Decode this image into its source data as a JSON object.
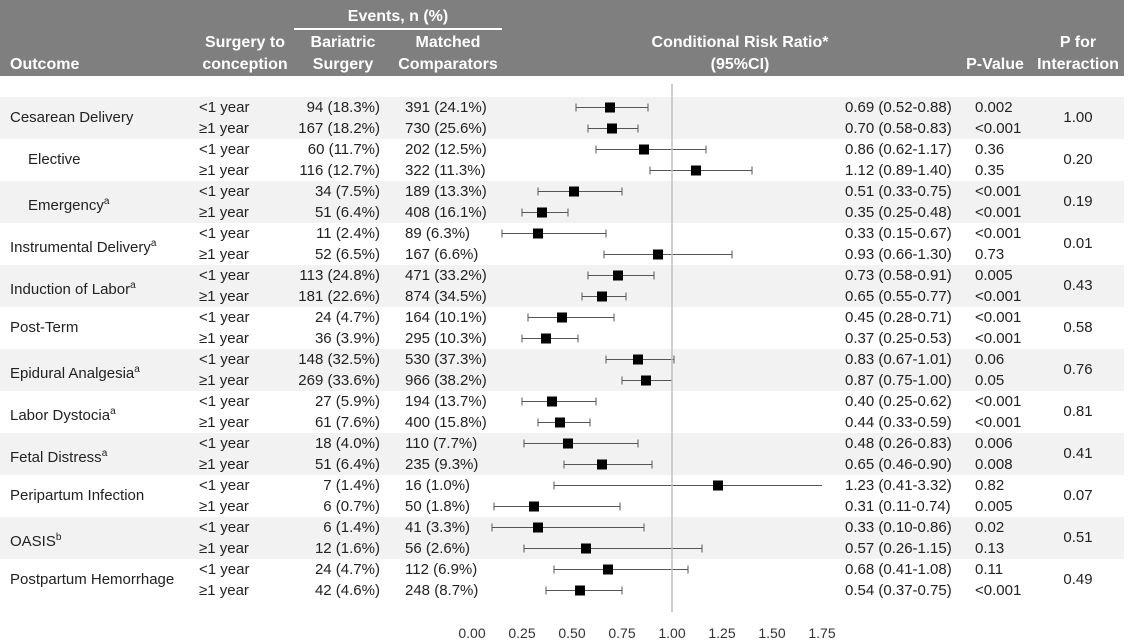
{
  "header": {
    "events_label": "Events, n (%)",
    "outcome_label": "Outcome",
    "surgery_line1": "Surgery to",
    "surgery_line2": "conception",
    "bariatric_line1": "Bariatric",
    "bariatric_line2": "Surgery",
    "matched_line1": "Matched",
    "matched_line2": "Comparators",
    "crr_line1": "Conditional Risk Ratio*",
    "crr_line2": "(95%CI)",
    "pvalue_label": "P-Value",
    "pint_line1": "P for",
    "pint_line2": "Interaction"
  },
  "chart_data": {
    "type": "forest",
    "x_range": [
      0,
      1.75
    ],
    "x_ticks": [
      "0.00",
      "0.25",
      "0.50",
      "0.75",
      "1.00",
      "1.25",
      "1.50",
      "1.75"
    ],
    "reference_line": 1.0,
    "outcomes": [
      {
        "name": "Cesarean Delivery",
        "sup": "",
        "indent": false,
        "p_interaction": "1.00",
        "shaded": true,
        "rows": [
          {
            "group": "<1 year",
            "bariatric": "94 (18.3%)",
            "comparators": "391 (24.1%)",
            "rr_text": "0.69 (0.52-0.88)",
            "p": "0.002",
            "rr": 0.69,
            "lo": 0.52,
            "hi": 0.88
          },
          {
            "group": "≥1 year",
            "bariatric": "167 (18.2%)",
            "comparators": "730 (25.6%)",
            "rr_text": "0.70 (0.58-0.83)",
            "p": "<0.001",
            "rr": 0.7,
            "lo": 0.58,
            "hi": 0.83
          }
        ]
      },
      {
        "name": "Elective",
        "sup": "",
        "indent": true,
        "p_interaction": "0.20",
        "shaded": false,
        "rows": [
          {
            "group": "<1 year",
            "bariatric": "60 (11.7%)",
            "comparators": "202 (12.5%)",
            "rr_text": "0.86 (0.62-1.17)",
            "p": "0.36",
            "rr": 0.86,
            "lo": 0.62,
            "hi": 1.17
          },
          {
            "group": "≥1 year",
            "bariatric": "116 (12.7%)",
            "comparators": "322 (11.3%)",
            "rr_text": "1.12 (0.89-1.40)",
            "p": "0.35",
            "rr": 1.12,
            "lo": 0.89,
            "hi": 1.4
          }
        ]
      },
      {
        "name": "Emergency",
        "sup": "a",
        "indent": true,
        "p_interaction": "0.19",
        "shaded": true,
        "rows": [
          {
            "group": "<1 year",
            "bariatric": "34 (7.5%)",
            "comparators": "189 (13.3%)",
            "rr_text": "0.51 (0.33-0.75)",
            "p": "<0.001",
            "rr": 0.51,
            "lo": 0.33,
            "hi": 0.75
          },
          {
            "group": "≥1 year",
            "bariatric": "51 (6.4%)",
            "comparators": "408 (16.1%)",
            "rr_text": "0.35 (0.25-0.48)",
            "p": "<0.001",
            "rr": 0.35,
            "lo": 0.25,
            "hi": 0.48
          }
        ]
      },
      {
        "name": "Instrumental Delivery",
        "sup": "a",
        "indent": false,
        "p_interaction": "0.01",
        "shaded": false,
        "rows": [
          {
            "group": "<1 year",
            "bariatric": "11 (2.4%)",
            "comparators": "89 (6.3%)",
            "rr_text": "0.33 (0.15-0.67)",
            "p": "<0.001",
            "rr": 0.33,
            "lo": 0.15,
            "hi": 0.67
          },
          {
            "group": "≥1 year",
            "bariatric": "52 (6.5%)",
            "comparators": "167 (6.6%)",
            "rr_text": "0.93 (0.66-1.30)",
            "p": "0.73",
            "rr": 0.93,
            "lo": 0.66,
            "hi": 1.3
          }
        ]
      },
      {
        "name": "Induction of Labor",
        "sup": "a",
        "indent": false,
        "p_interaction": "0.43",
        "shaded": true,
        "rows": [
          {
            "group": "<1 year",
            "bariatric": "113 (24.8%)",
            "comparators": "471 (33.2%)",
            "rr_text": "0.73 (0.58-0.91)",
            "p": "0.005",
            "rr": 0.73,
            "lo": 0.58,
            "hi": 0.91
          },
          {
            "group": "≥1 year",
            "bariatric": "181 (22.6%)",
            "comparators": "874 (34.5%)",
            "rr_text": "0.65 (0.55-0.77)",
            "p": "<0.001",
            "rr": 0.65,
            "lo": 0.55,
            "hi": 0.77
          }
        ]
      },
      {
        "name": "Post-Term",
        "sup": "",
        "indent": false,
        "p_interaction": "0.58",
        "shaded": false,
        "rows": [
          {
            "group": "<1 year",
            "bariatric": "24 (4.7%)",
            "comparators": "164 (10.1%)",
            "rr_text": "0.45 (0.28-0.71)",
            "p": "<0.001",
            "rr": 0.45,
            "lo": 0.28,
            "hi": 0.71
          },
          {
            "group": "≥1 year",
            "bariatric": "36 (3.9%)",
            "comparators": "295 (10.3%)",
            "rr_text": "0.37 (0.25-0.53)",
            "p": "<0.001",
            "rr": 0.37,
            "lo": 0.25,
            "hi": 0.53
          }
        ]
      },
      {
        "name": "Epidural Analgesia",
        "sup": "a",
        "indent": false,
        "p_interaction": "0.76",
        "shaded": true,
        "rows": [
          {
            "group": "<1 year",
            "bariatric": "148 (32.5%)",
            "comparators": "530 (37.3%)",
            "rr_text": "0.83 (0.67-1.01)",
            "p": "0.06",
            "rr": 0.83,
            "lo": 0.67,
            "hi": 1.01
          },
          {
            "group": "≥1 year",
            "bariatric": "269 (33.6%)",
            "comparators": "966 (38.2%)",
            "rr_text": "0.87 (0.75-1.00)",
            "p": "0.05",
            "rr": 0.87,
            "lo": 0.75,
            "hi": 1.0
          }
        ]
      },
      {
        "name": "Labor Dystocia",
        "sup": "a",
        "indent": false,
        "p_interaction": "0.81",
        "shaded": false,
        "rows": [
          {
            "group": "<1 year",
            "bariatric": "27 (5.9%)",
            "comparators": "194 (13.7%)",
            "rr_text": "0.40 (0.25-0.62)",
            "p": "<0.001",
            "rr": 0.4,
            "lo": 0.25,
            "hi": 0.62
          },
          {
            "group": "≥1 year",
            "bariatric": "61 (7.6%)",
            "comparators": "400 (15.8%)",
            "rr_text": "0.44 (0.33-0.59)",
            "p": "<0.001",
            "rr": 0.44,
            "lo": 0.33,
            "hi": 0.59
          }
        ]
      },
      {
        "name": "Fetal Distress",
        "sup": "a",
        "indent": false,
        "p_interaction": "0.41",
        "shaded": true,
        "rows": [
          {
            "group": "<1 year",
            "bariatric": "18 (4.0%)",
            "comparators": "110 (7.7%)",
            "rr_text": "0.48 (0.26-0.83)",
            "p": "0.006",
            "rr": 0.48,
            "lo": 0.26,
            "hi": 0.83
          },
          {
            "group": "≥1 year",
            "bariatric": "51 (6.4%)",
            "comparators": "235 (9.3%)",
            "rr_text": "0.65 (0.46-0.90)",
            "p": "0.008",
            "rr": 0.65,
            "lo": 0.46,
            "hi": 0.9
          }
        ]
      },
      {
        "name": "Peripartum Infection",
        "sup": "",
        "indent": false,
        "p_interaction": "0.07",
        "shaded": false,
        "rows": [
          {
            "group": "<1 year",
            "bariatric": "7 (1.4%)",
            "comparators": "16 (1.0%)",
            "rr_text": "1.23 (0.41-3.32)",
            "p": "0.82",
            "rr": 1.23,
            "lo": 0.41,
            "hi": 3.32
          },
          {
            "group": "≥1 year",
            "bariatric": "6 (0.7%)",
            "comparators": "50 (1.8%)",
            "rr_text": "0.31 (0.11-0.74)",
            "p": "0.005",
            "rr": 0.31,
            "lo": 0.11,
            "hi": 0.74
          }
        ]
      },
      {
        "name": "OASIS",
        "sup": "b",
        "indent": false,
        "p_interaction": "0.51",
        "shaded": true,
        "rows": [
          {
            "group": "<1 year",
            "bariatric": "6 (1.4%)",
            "comparators": "41 (3.3%)",
            "rr_text": "0.33 (0.10-0.86)",
            "p": "0.02",
            "rr": 0.33,
            "lo": 0.1,
            "hi": 0.86
          },
          {
            "group": "≥1 year",
            "bariatric": "12 (1.6%)",
            "comparators": "56 (2.6%)",
            "rr_text": "0.57 (0.26-1.15)",
            "p": "0.13",
            "rr": 0.57,
            "lo": 0.26,
            "hi": 1.15
          }
        ]
      },
      {
        "name": "Postpartum Hemorrhage",
        "sup": "",
        "indent": false,
        "p_interaction": "0.49",
        "shaded": false,
        "rows": [
          {
            "group": "<1 year",
            "bariatric": "24 (4.7%)",
            "comparators": "112 (6.9%)",
            "rr_text": "0.68 (0.41-1.08)",
            "p": "0.11",
            "rr": 0.68,
            "lo": 0.41,
            "hi": 1.08
          },
          {
            "group": "≥1 year",
            "bariatric": "42 (4.6%)",
            "comparators": "248 (8.7%)",
            "rr_text": "0.54 (0.37-0.75)",
            "p": "<0.001",
            "rr": 0.54,
            "lo": 0.37,
            "hi": 0.75
          }
        ]
      }
    ]
  }
}
